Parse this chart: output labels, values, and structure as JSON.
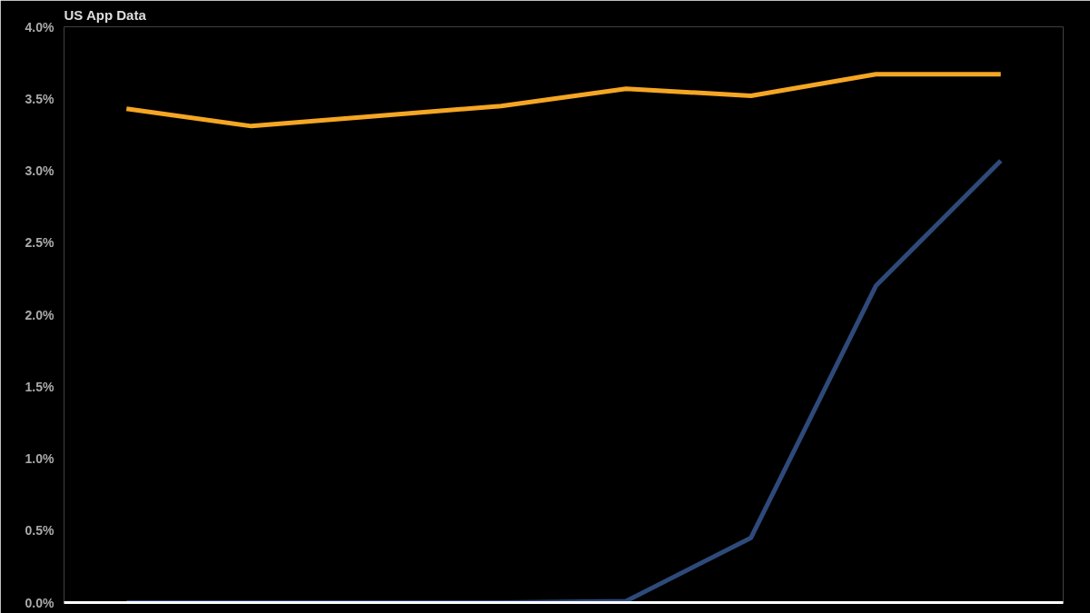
{
  "chart_data": {
    "type": "line",
    "title": "US App Data",
    "categories": [
      null,
      null,
      null,
      null,
      null,
      null,
      null,
      null
    ],
    "series": [
      {
        "color": "#f5a623",
        "values": [
          3.43,
          3.31,
          3.38,
          3.45,
          3.57,
          3.52,
          3.67,
          3.67
        ]
      },
      {
        "color": "#2e4a7a",
        "values": [
          0,
          0,
          0,
          0,
          0.01,
          0.45,
          2.2,
          3.07
        ]
      }
    ],
    "ylim": [
      0,
      4.0
    ],
    "yticks": [
      {
        "value": 0,
        "label": "0.0%"
      },
      {
        "value": 0.5,
        "label": "0.5%"
      },
      {
        "value": 1.0,
        "label": "1.0%"
      },
      {
        "value": 1.5,
        "label": "1.5%"
      },
      {
        "value": 2.0,
        "label": "2.0%"
      },
      {
        "value": 2.5,
        "label": "2.5%"
      },
      {
        "value": 3.0,
        "label": "3.0%"
      },
      {
        "value": 3.5,
        "label": "3.5%"
      },
      {
        "value": 4.0,
        "label": "4.0%"
      }
    ],
    "tick_labels": "y",
    "grid": false,
    "marker": "none",
    "line_style": "solid"
  }
}
